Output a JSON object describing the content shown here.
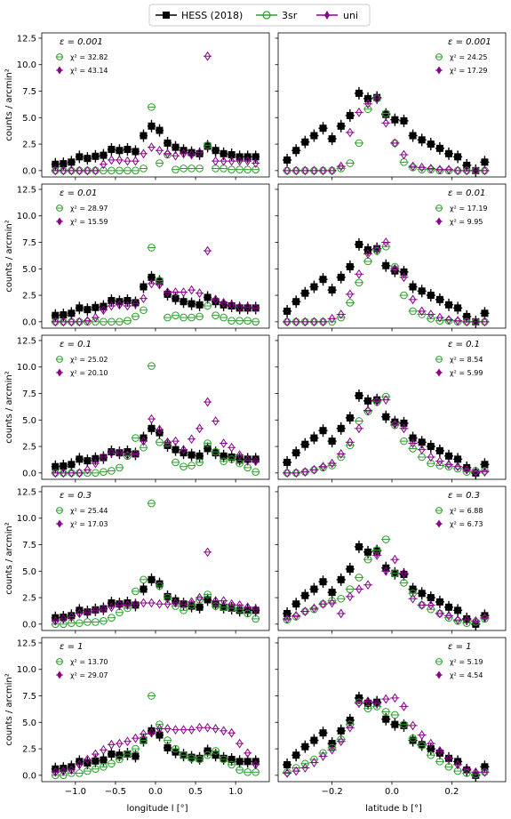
{
  "legend": {
    "placement": "top-center",
    "entries": [
      {
        "name": "HESS (2018)",
        "color": "#000000",
        "marker": "square"
      },
      {
        "name": "3sr",
        "color": "#2ca02c",
        "marker": "circle-open-plus"
      },
      {
        "name": "uni",
        "color": "#8b008b",
        "marker": "thin-diamond"
      }
    ]
  },
  "axes_text": {
    "ylabel": "counts / arcmin²",
    "xlabel_left": "longitude l [°]",
    "xlabel_right": "latitude b [°]"
  },
  "chart_data": {
    "type": "scatter",
    "ylim": [
      -0.6,
      13
    ],
    "yticks": [
      "0.0",
      "2.5",
      "5.0",
      "7.5",
      "10.0",
      "12.5"
    ],
    "ytick_values": [
      0,
      2.5,
      5,
      7.5,
      10,
      12.5
    ],
    "longitude": {
      "xlim": [
        -1.42,
        1.42
      ],
      "xticks": [
        "−1.0",
        "−0.5",
        "0.0",
        "0.5",
        "1.0"
      ],
      "xtick_values": [
        -1.0,
        -0.5,
        0.0,
        0.5,
        1.0
      ],
      "x": [
        -1.25,
        -1.15,
        -1.05,
        -0.95,
        -0.85,
        -0.75,
        -0.65,
        -0.55,
        -0.45,
        -0.35,
        -0.25,
        -0.15,
        -0.05,
        0.05,
        0.15,
        0.25,
        0.35,
        0.45,
        0.55,
        0.65,
        0.75,
        0.85,
        0.95,
        1.05,
        1.15,
        1.25
      ],
      "hess": [
        0.6,
        0.65,
        0.8,
        1.3,
        1.15,
        1.35,
        1.45,
        2.0,
        1.9,
        2.0,
        1.8,
        3.3,
        4.2,
        3.8,
        2.6,
        2.2,
        1.9,
        1.7,
        1.6,
        2.3,
        1.9,
        1.6,
        1.5,
        1.3,
        1.3,
        1.3
      ]
    },
    "latitude": {
      "xlim": [
        -0.38,
        0.38
      ],
      "xticks": [
        "−0.2",
        "0.0",
        "0.2"
      ],
      "xtick_values": [
        -0.2,
        0.0,
        0.2
      ],
      "x": [
        -0.35,
        -0.32,
        -0.29,
        -0.26,
        -0.23,
        -0.2,
        -0.17,
        -0.14,
        -0.11,
        -0.08,
        -0.05,
        -0.02,
        0.01,
        0.04,
        0.07,
        0.1,
        0.13,
        0.16,
        0.19,
        0.22,
        0.25,
        0.28,
        0.31
      ],
      "hess": [
        1.0,
        1.9,
        2.7,
        3.3,
        4.0,
        3.0,
        4.2,
        5.2,
        7.3,
        6.8,
        6.9,
        5.3,
        4.8,
        4.7,
        3.3,
        2.9,
        2.5,
        2.1,
        1.6,
        1.3,
        0.5,
        0.0,
        0.8
      ]
    },
    "rows": [
      {
        "eps_label": "ε = 0.001",
        "left": {
          "chi2": [
            "χ² = 32.82",
            "χ² = 43.14"
          ],
          "sr3": [
            0,
            0,
            0,
            0,
            0,
            0,
            0,
            0,
            0,
            0,
            0,
            0.2,
            6.0,
            0.7,
            1.5,
            0.1,
            0.2,
            0.2,
            0.2,
            2.4,
            0.2,
            0.2,
            0.1,
            0.1,
            0.1,
            0.1
          ],
          "uni": [
            0,
            0,
            0,
            0,
            0,
            0,
            0.6,
            1.0,
            1.0,
            0.9,
            0.9,
            1.6,
            2.2,
            1.9,
            1.6,
            1.4,
            1.6,
            1.5,
            1.7,
            10.8,
            0.9,
            0.9,
            0.9,
            0.9,
            0.9,
            0.7
          ]
        },
        "right": {
          "chi2": [
            "χ² = 24.25",
            "χ² = 17.29"
          ],
          "sr3": [
            0,
            0,
            0,
            0,
            0,
            0,
            0.2,
            0.7,
            2.6,
            5.8,
            6.8,
            5.4,
            2.6,
            0.8,
            0.3,
            0.1,
            0.1,
            0,
            0,
            0,
            0,
            0,
            0
          ],
          "uni": [
            0,
            0,
            0,
            0,
            0,
            0,
            0.4,
            3.6,
            5.5,
            6.3,
            6.8,
            4.5,
            2.6,
            1.5,
            0.4,
            0.3,
            0.2,
            0.1,
            0.1,
            0,
            0,
            0,
            0
          ]
        }
      },
      {
        "eps_label": "ε = 0.01",
        "left": {
          "chi2": [
            "χ² = 28.97",
            "χ² = 15.59"
          ],
          "sr3": [
            0,
            0,
            0,
            0,
            0,
            0,
            0,
            0,
            0,
            0.1,
            0.5,
            1.1,
            7.0,
            3.9,
            0.4,
            0.6,
            0.4,
            0.4,
            0.5,
            1.5,
            0.6,
            0.4,
            0.1,
            0.1,
            0.1,
            0
          ],
          "uni": [
            0,
            0,
            0,
            0,
            0.1,
            0.4,
            1.1,
            1.5,
            1.6,
            1.5,
            1.7,
            2.2,
            3.6,
            3.5,
            2.8,
            2.8,
            2.8,
            3.0,
            2.7,
            6.7,
            2.1,
            1.8,
            1.6,
            1.4,
            1.4,
            1.3
          ]
        },
        "right": {
          "chi2": [
            "χ² = 17.19",
            "χ² = 9.95"
          ],
          "sr3": [
            0,
            0,
            0,
            0,
            0,
            0,
            0.4,
            1.8,
            3.7,
            5.7,
            6.7,
            7.1,
            5.2,
            2.5,
            1.0,
            0.7,
            0.3,
            0.1,
            0.1,
            0,
            0,
            0,
            0
          ],
          "uni": [
            0,
            0,
            0,
            0,
            0,
            0.3,
            0.7,
            2.6,
            4.5,
            6.4,
            6.9,
            7.5,
            5.0,
            4.2,
            2.1,
            1.0,
            0.7,
            0.4,
            0.2,
            0.1,
            0,
            0,
            0
          ]
        }
      },
      {
        "eps_label": "ε = 0.1",
        "left": {
          "chi2": [
            "χ² = 25.02",
            "χ² = 20.10"
          ],
          "sr3": [
            0,
            0,
            0,
            0,
            0,
            0,
            0.1,
            0.2,
            0.5,
            1.6,
            3.3,
            2.4,
            10.1,
            2.9,
            2.8,
            1.0,
            0.6,
            0.7,
            1.0,
            2.8,
            2.0,
            1.1,
            1.3,
            0.9,
            0.5,
            0.1
          ],
          "uni": [
            0,
            0,
            0,
            0,
            0.3,
            0.9,
            1.5,
            1.9,
            1.9,
            1.7,
            1.8,
            3.0,
            5.1,
            4.1,
            2.9,
            3.0,
            2.2,
            3.2,
            4.2,
            6.7,
            4.9,
            2.8,
            2.4,
            1.7,
            1.2,
            1.1
          ]
        },
        "right": {
          "chi2": [
            "χ² = 8.54",
            "χ² = 5.99"
          ],
          "sr3": [
            0,
            0,
            0.1,
            0.3,
            0.5,
            0.7,
            1.5,
            2.6,
            4.9,
            5.8,
            6.7,
            7.2,
            4.5,
            3.0,
            2.3,
            1.5,
            0.9,
            0.7,
            0.6,
            0.4,
            0.1,
            0.2,
            0.2
          ],
          "uni": [
            0,
            0,
            0.1,
            0.3,
            0.6,
            0.9,
            1.8,
            2.9,
            4.2,
            5.9,
            6.8,
            6.9,
            4.6,
            4.2,
            2.8,
            2.2,
            1.5,
            1.1,
            0.8,
            0.6,
            0.3,
            0.1,
            0.1
          ]
        }
      },
      {
        "eps_label": "ε = 0.3",
        "left": {
          "chi2": [
            "χ² = 25.44",
            "χ² = 17.03"
          ],
          "sr3": [
            0,
            0,
            0.1,
            0.1,
            0.2,
            0.2,
            0.3,
            0.6,
            1.1,
            1.5,
            3.1,
            4.2,
            11.4,
            3.6,
            2.5,
            1.7,
            1.3,
            1.8,
            2.3,
            2.8,
            1.7,
            1.6,
            1.5,
            1.4,
            1.0,
            0.5
          ],
          "uni": [
            0.3,
            0.5,
            0.7,
            1.0,
            1.1,
            1.3,
            1.4,
            1.6,
            1.8,
            1.8,
            1.9,
            2.0,
            2.0,
            1.9,
            1.9,
            2.0,
            1.9,
            2.1,
            2.5,
            6.8,
            2.2,
            2.2,
            1.9,
            1.8,
            1.6,
            1.4
          ]
        },
        "right": {
          "chi2": [
            "χ² = 6.88",
            "χ² = 6.73"
          ],
          "sr3": [
            0.4,
            0.7,
            1.2,
            1.4,
            1.9,
            2.2,
            2.4,
            3.3,
            4.4,
            6.1,
            7.0,
            8.0,
            4.8,
            3.9,
            2.9,
            1.8,
            1.4,
            1.0,
            0.6,
            0.3,
            0.1,
            0.2,
            0.5
          ],
          "uni": [
            0.5,
            0.8,
            1.2,
            1.5,
            1.9,
            2.0,
            1.0,
            2.6,
            3.3,
            3.7,
            6.5,
            5.0,
            6.1,
            4.8,
            2.4,
            1.8,
            1.8,
            1.0,
            0.8,
            0.4,
            0.4,
            0.3,
            0.6
          ]
        }
      },
      {
        "eps_label": "ε = 1",
        "left": {
          "chi2": [
            "χ² = 13.70",
            "χ² = 29.07"
          ],
          "sr3": [
            0,
            0,
            0.2,
            0.2,
            0.4,
            0.6,
            0.8,
            1.1,
            1.5,
            2.0,
            2.5,
            3.3,
            7.5,
            4.8,
            3.3,
            2.5,
            1.9,
            1.6,
            1.5,
            1.9,
            2.3,
            1.5,
            1.0,
            0.5,
            0.3,
            0.3
          ],
          "uni": [
            0.3,
            0.4,
            0.5,
            1.0,
            1.5,
            2.0,
            2.4,
            2.9,
            3.0,
            3.2,
            3.5,
            3.9,
            4.0,
            4.4,
            4.4,
            4.3,
            4.3,
            4.3,
            4.5,
            4.5,
            4.4,
            4.2,
            4.0,
            3.0,
            2.1,
            1.0
          ]
        },
        "right": {
          "chi2": [
            "χ² = 5.19",
            "χ² = 4.54"
          ],
          "sr3": [
            0.3,
            0.7,
            1.1,
            1.5,
            2.1,
            2.6,
            3.4,
            4.8,
            6.9,
            6.3,
            6.5,
            6.0,
            5.7,
            4.8,
            3.5,
            2.8,
            1.9,
            1.3,
            0.8,
            0.4,
            0.2,
            0.1,
            0.3
          ],
          "uni": [
            0.2,
            0.4,
            0.7,
            1.2,
            1.8,
            2.4,
            3.2,
            4.5,
            6.8,
            7.0,
            6.8,
            7.2,
            7.3,
            6.5,
            4.7,
            3.8,
            3.0,
            2.3,
            1.6,
            1.0,
            0.6,
            0.3,
            0.3
          ]
        }
      }
    ]
  }
}
